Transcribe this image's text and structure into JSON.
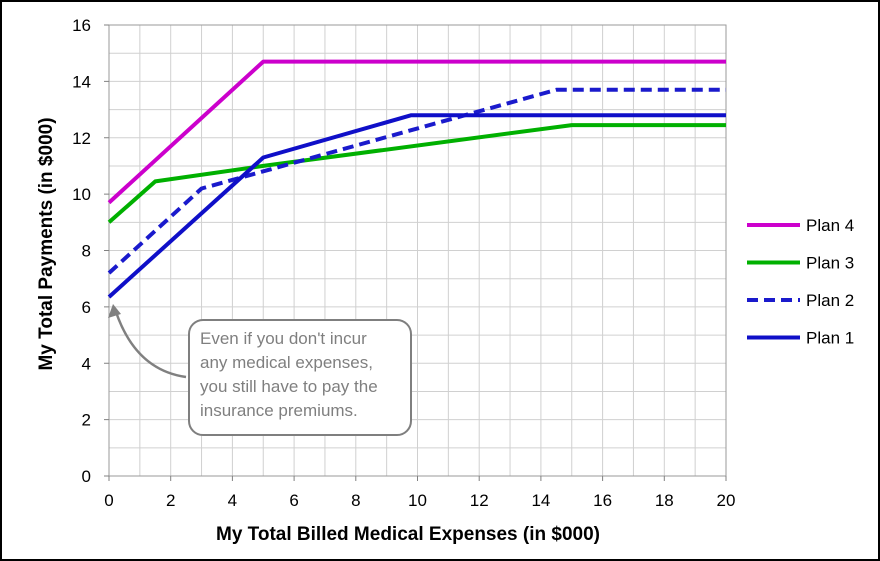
{
  "chart_data": {
    "type": "line",
    "xlabel": "My Total Billed Medical Expenses (in $000)",
    "ylabel": "My Total Payments (in $000)",
    "xlim": [
      0,
      20
    ],
    "ylim": [
      0,
      16
    ],
    "x_ticks": [
      "0",
      "2",
      "4",
      "6",
      "8",
      "10",
      "12",
      "14",
      "16",
      "18",
      "20"
    ],
    "y_ticks": [
      "0",
      "2",
      "4",
      "6",
      "8",
      "10",
      "12",
      "14",
      "16"
    ],
    "grid": true,
    "legend_position": "right",
    "series": [
      {
        "name": "Plan 4",
        "color": "#cc00cc",
        "dash": "solid",
        "points": [
          [
            0,
            9.7
          ],
          [
            5,
            14.7
          ],
          [
            20,
            14.7
          ]
        ]
      },
      {
        "name": "Plan 3",
        "color": "#00b000",
        "dash": "solid",
        "points": [
          [
            0,
            9.0
          ],
          [
            1.5,
            10.45
          ],
          [
            5,
            11.0
          ],
          [
            15,
            12.45
          ],
          [
            20,
            12.45
          ]
        ]
      },
      {
        "name": "Plan 2",
        "color": "#1a1acc",
        "dash": "dashed",
        "points": [
          [
            0,
            7.2
          ],
          [
            3,
            10.2
          ],
          [
            14.5,
            13.7
          ],
          [
            20,
            13.7
          ]
        ]
      },
      {
        "name": "Plan 1",
        "color": "#0f0fc8",
        "dash": "solid",
        "points": [
          [
            0,
            6.35
          ],
          [
            5,
            11.3
          ],
          [
            9.8,
            12.8
          ],
          [
            20,
            12.8
          ]
        ]
      }
    ],
    "annotation": {
      "lines": [
        "Even if you don't incur",
        "any medical expenses,",
        "you still have to pay the",
        "insurance premiums."
      ],
      "arrow_target": [
        0,
        6.35
      ]
    }
  }
}
